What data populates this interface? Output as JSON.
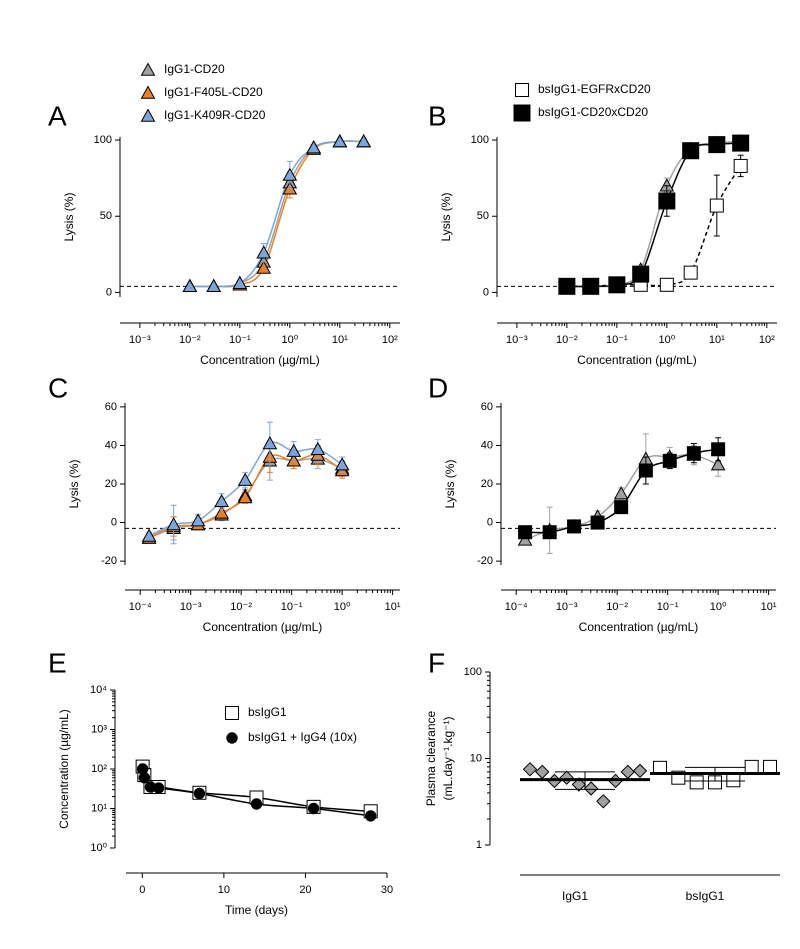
{
  "chart_data": [
    {
      "type": "line",
      "panel": "A",
      "xlabel": "Concentration (µg/mL)",
      "ylabel": "Lysis (%)",
      "xscale": "log",
      "xlim": [
        0.0004,
        160
      ],
      "ylim": [
        -3,
        102
      ],
      "yticks": [
        0,
        50,
        100
      ],
      "xticks": [
        {
          "value": 0.001,
          "label": "10⁻³"
        },
        {
          "value": 0.01,
          "label": "10⁻²"
        },
        {
          "value": 0.1,
          "label": "10⁻¹"
        },
        {
          "value": 1,
          "label": "10⁰"
        },
        {
          "value": 10,
          "label": "10¹"
        },
        {
          "value": 100,
          "label": "10²"
        }
      ],
      "baseline": 4,
      "legend": "above",
      "x": [
        0.01,
        0.03,
        0.1,
        0.3,
        1,
        3,
        10,
        30
      ],
      "series": [
        {
          "name": "IgG1-CD20",
          "color": "#a0a0a0",
          "marker": "triangle",
          "values": [
            4,
            4,
            6,
            20,
            72,
            95,
            99,
            99
          ],
          "errors": [
            1,
            1,
            1,
            4,
            7,
            2,
            1,
            1
          ]
        },
        {
          "name": "IgG1-F405L-CD20",
          "color": "#e8812b",
          "marker": "triangle",
          "values": [
            4,
            4,
            5,
            16,
            68,
            94,
            99,
            99
          ],
          "errors": [
            1,
            1,
            1,
            3,
            6,
            2,
            1,
            1
          ]
        },
        {
          "name": "IgG1-K409R-CD20",
          "color": "#7ea4d8",
          "marker": "triangle",
          "values": [
            4,
            4,
            6,
            26,
            77,
            95,
            99,
            99
          ],
          "errors": [
            1,
            1,
            1,
            6,
            9,
            2,
            1,
            1
          ]
        }
      ]
    },
    {
      "type": "line",
      "panel": "B",
      "xlabel": "Concentration (µg/mL)",
      "ylabel": "Lysis (%)",
      "xscale": "log",
      "xlim": [
        0.0004,
        160
      ],
      "ylim": [
        -3,
        102
      ],
      "yticks": [
        0,
        50,
        100
      ],
      "xticks": [
        {
          "value": 0.001,
          "label": "10⁻³"
        },
        {
          "value": 0.01,
          "label": "10⁻²"
        },
        {
          "value": 0.1,
          "label": "10⁻¹"
        },
        {
          "value": 1,
          "label": "10⁰"
        },
        {
          "value": 10,
          "label": "10¹"
        },
        {
          "value": 100,
          "label": "10²"
        }
      ],
      "baseline": 4,
      "legend": "above",
      "x": [
        0.01,
        0.03,
        0.1,
        0.3,
        1,
        3,
        10,
        30
      ],
      "series": [
        {
          "color": "#a0a0a0",
          "marker": "triangle",
          "values": [
            4,
            4,
            5,
            15,
            70,
            94,
            98,
            99
          ],
          "errors": [
            1,
            1,
            1,
            2,
            5,
            2,
            1,
            1
          ]
        },
        {
          "name": "bsIgG1-EGFRxCD20",
          "color": "#ffffff",
          "line_color": "#000000",
          "dashed": true,
          "marker": "square",
          "values": [
            4,
            4,
            5,
            5,
            5,
            13,
            57,
            83
          ],
          "errors": [
            1,
            1,
            1,
            1,
            1,
            4,
            20,
            7
          ]
        },
        {
          "name": "bsIgG1-CD20xCD20",
          "color": "#000000",
          "marker": "square",
          "values": [
            4,
            4,
            5,
            12,
            60,
            93,
            97,
            98
          ],
          "errors": [
            1,
            1,
            1,
            3,
            10,
            3,
            2,
            2
          ]
        }
      ]
    },
    {
      "type": "line",
      "panel": "C",
      "xlabel": "Concentration (µg/mL)",
      "ylabel": "Lysis (%)",
      "xscale": "log",
      "xlim": [
        5e-05,
        14
      ],
      "ylim": [
        -22,
        62
      ],
      "yticks": [
        -20,
        0,
        20,
        40,
        60
      ],
      "xticks": [
        {
          "value": 0.0001,
          "label": "10⁻⁴"
        },
        {
          "value": 0.001,
          "label": "10⁻³"
        },
        {
          "value": 0.01,
          "label": "10⁻²"
        },
        {
          "value": 0.1,
          "label": "10⁻¹"
        },
        {
          "value": 1,
          "label": "10⁰"
        },
        {
          "value": 10,
          "label": "10¹"
        }
      ],
      "baseline": -3,
      "legend": "none",
      "x": [
        0.00015,
        0.00046,
        0.0014,
        0.0041,
        0.012,
        0.037,
        0.11,
        0.33,
        1
      ],
      "series": [
        {
          "color": "#a0a0a0",
          "marker": "triangle",
          "values": [
            -8,
            -3,
            -1,
            4,
            14,
            32,
            32,
            33,
            28
          ],
          "errors": [
            2,
            6,
            2,
            3,
            3,
            10,
            4,
            5,
            4
          ]
        },
        {
          "color": "#e8812b",
          "marker": "triangle",
          "values": [
            -8,
            -2,
            -1,
            5,
            13,
            34,
            32,
            35,
            27
          ],
          "errors": [
            2,
            5,
            2,
            3,
            3,
            8,
            4,
            5,
            4
          ]
        },
        {
          "color": "#7ea4d8",
          "marker": "triangle",
          "values": [
            -7,
            -1,
            1,
            11,
            22,
            41,
            37,
            38,
            30
          ],
          "errors": [
            2,
            10,
            3,
            4,
            4,
            11,
            5,
            5,
            4
          ]
        }
      ]
    },
    {
      "type": "line",
      "panel": "D",
      "xlabel": "Concentration (µg/mL)",
      "ylabel": "Lysis (%)",
      "xscale": "log",
      "xlim": [
        5e-05,
        14
      ],
      "ylim": [
        -22,
        62
      ],
      "yticks": [
        -20,
        0,
        20,
        40,
        60
      ],
      "xticks": [
        {
          "value": 0.0001,
          "label": "10⁻⁴"
        },
        {
          "value": 0.001,
          "label": "10⁻³"
        },
        {
          "value": 0.01,
          "label": "10⁻²"
        },
        {
          "value": 0.1,
          "label": "10⁻¹"
        },
        {
          "value": 1,
          "label": "10⁰"
        },
        {
          "value": 10,
          "label": "10¹"
        }
      ],
      "baseline": -3,
      "legend": "none",
      "x": [
        0.00015,
        0.00046,
        0.0014,
        0.0041,
        0.012,
        0.037,
        0.11,
        0.33,
        1
      ],
      "series": [
        {
          "color": "#a0a0a0",
          "marker": "triangle",
          "values": [
            -9,
            -4,
            -2,
            3,
            15,
            33,
            34,
            35,
            30
          ],
          "errors": [
            2,
            12,
            2,
            3,
            3,
            13,
            5,
            5,
            6
          ]
        },
        {
          "color": "#000000",
          "marker": "square",
          "values": [
            -5,
            -5,
            -2,
            0,
            8,
            27,
            32,
            36,
            38
          ],
          "errors": [
            2,
            3,
            2,
            2,
            3,
            7,
            4,
            5,
            6
          ]
        }
      ]
    },
    {
      "type": "line",
      "panel": "E",
      "xlabel": "Time (days)",
      "ylabel": "Concentration (µg/mL)",
      "yscale": "log",
      "xlim": [
        -2,
        30
      ],
      "ylim": [
        1,
        10000
      ],
      "xticks": [
        0,
        10,
        20,
        30
      ],
      "yticks": [
        {
          "value": 1,
          "label": "10⁰"
        },
        {
          "value": 10,
          "label": "10¹"
        },
        {
          "value": 100,
          "label": "10²"
        },
        {
          "value": 1000,
          "label": "10³"
        },
        {
          "value": 10000,
          "label": "10⁴"
        }
      ],
      "legend": "upper center",
      "x": [
        0.04,
        0.25,
        1,
        2,
        7,
        14,
        21,
        28
      ],
      "series": [
        {
          "name": "bsIgG1",
          "color": "#ffffff",
          "line_color": "#000000",
          "marker": "square",
          "values": [
            115,
            70,
            35,
            35,
            25,
            19,
            11,
            8.5
          ]
        },
        {
          "name": "bsIgG1 + IgG4 (10x)",
          "color": "#000000",
          "marker": "circle",
          "values": [
            100,
            60,
            35,
            33,
            24,
            13,
            10,
            6.5
          ]
        }
      ]
    },
    {
      "type": "dot",
      "panel": "F",
      "ylabel": [
        "Plasma clearance",
        "(mL.day⁻¹.kg⁻¹)"
      ],
      "yscale": "log",
      "ylim": [
        1,
        100
      ],
      "yticks": [
        1,
        10,
        100
      ],
      "categories": [
        "IgG1",
        "bsIgG1"
      ],
      "colors": [
        "#a0a0a0",
        "#ffffff"
      ],
      "markers": [
        "diamond",
        "square"
      ],
      "values": [
        [
          7.5,
          7,
          5.5,
          6,
          5,
          4.5,
          3.2,
          5.5,
          7,
          7.2
        ],
        [
          7.8,
          6,
          5.3,
          5.3,
          5.6,
          8,
          8
        ]
      ],
      "means": [
        5.7,
        6.7
      ],
      "errors": [
        1.3,
        1.2
      ]
    }
  ]
}
